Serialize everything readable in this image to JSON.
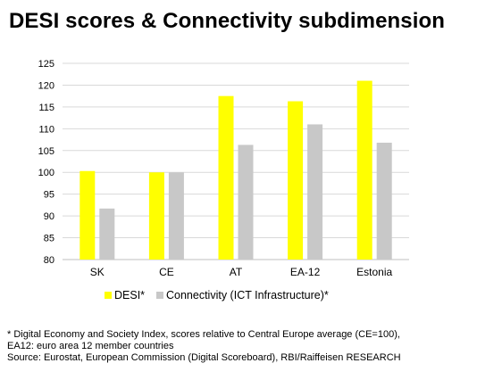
{
  "title": "DESI scores & Connectivity subdimension",
  "chart_data": {
    "type": "bar",
    "categories": [
      "SK",
      "CE",
      "AT",
      "EA-12",
      "Estonia"
    ],
    "series": [
      {
        "name": "DESI*",
        "values": [
          100.3,
          100.0,
          117.5,
          116.3,
          121.0
        ],
        "color": "#ffff00"
      },
      {
        "name": "Connectivity (ICT Infrastructure)*",
        "values": [
          91.7,
          100.0,
          106.3,
          111.0,
          106.8
        ],
        "color": "#c8c8c8"
      }
    ],
    "ylim": [
      80,
      125
    ],
    "yticks": [
      80,
      85,
      90,
      95,
      100,
      105,
      110,
      115,
      120,
      125
    ],
    "grid": true,
    "legend": "bottom"
  },
  "notes": [
    "* Digital Economy and Society Index, scores relative to Central Europe average (CE=100),",
    "EA12: euro area 12 member countries",
    "Source: Eurostat, European Commission (Digital Scoreboard), RBI/Raiffeisen RESEARCH"
  ]
}
